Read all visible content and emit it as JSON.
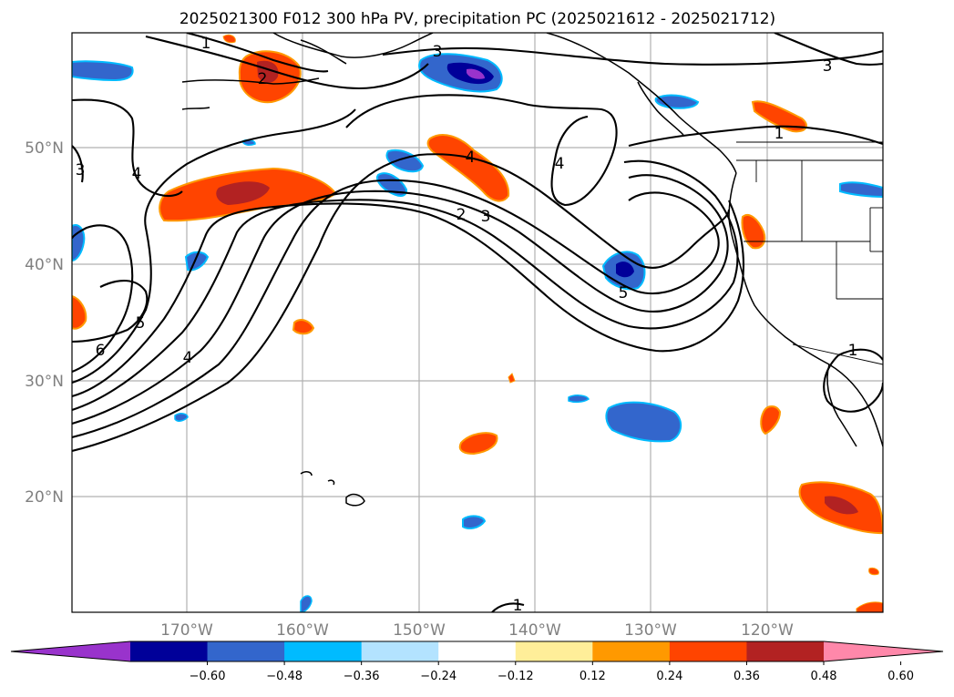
{
  "title": "2025021300 F012 300 hPa PV, precipitation PC (2025021612 - 2025021712)",
  "lat_labels": [
    "50°N",
    "40°N",
    "30°N",
    "20°N"
  ],
  "lon_labels": [
    "170°W",
    "160°W",
    "150°W",
    "140°W",
    "130°W",
    "120°W"
  ],
  "colorbar": {
    "ticks": [
      "−0.60",
      "−0.48",
      "−0.36",
      "−0.24",
      "−0.12",
      "0.12",
      "0.24",
      "0.36",
      "0.48",
      "0.60"
    ],
    "colors": [
      "#9933cc",
      "#000099",
      "#3366cc",
      "#00bbff",
      "#b3e3ff",
      "#ffffff",
      "#ffee99",
      "#ff9900",
      "#ff4400",
      "#b22222",
      "#ff88aa"
    ]
  },
  "contour_labels": [
    "1",
    "2",
    "3",
    "4",
    "4",
    "4",
    "3",
    "2",
    "3",
    "5",
    "6",
    "5",
    "4",
    "3",
    "1",
    "1",
    "3"
  ],
  "colors": {
    "contour": "#000000",
    "grid": "#b0b0b0",
    "axis_label": "#808080"
  }
}
